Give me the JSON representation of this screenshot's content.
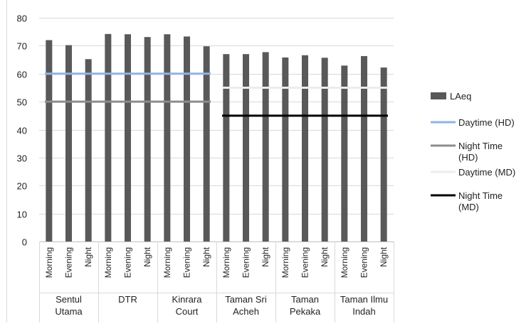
{
  "chart_data": {
    "type": "bar",
    "groups": [
      {
        "label": [
          "Sentul",
          "Utama"
        ],
        "categories": [
          "Morning",
          "Evening",
          "Night"
        ]
      },
      {
        "label": [
          "DTR"
        ],
        "categories": [
          "Morning",
          "Evening",
          "Night"
        ]
      },
      {
        "label": [
          "Kinrara",
          "Court"
        ],
        "categories": [
          "Morning",
          "Evening",
          "Night"
        ]
      },
      {
        "label": [
          "Taman Sri",
          "Acheh"
        ],
        "categories": [
          "Morning",
          "Evening",
          "Night"
        ]
      },
      {
        "label": [
          "Taman",
          "Pekaka"
        ],
        "categories": [
          "Morning",
          "Evening",
          "Night"
        ]
      },
      {
        "label": [
          "Taman Ilmu",
          "Indah"
        ],
        "categories": [
          "Morning",
          "Evening",
          "Night"
        ]
      }
    ],
    "series": [
      {
        "name": "LAeq",
        "kind": "bar",
        "color": "#595959",
        "values": [
          72,
          70.2,
          65.2,
          74.2,
          74.1,
          73.1,
          74.1,
          73.3,
          69.8,
          67,
          67,
          67.7,
          65.8,
          66.6,
          65.7,
          62.9,
          66.3,
          62.2
        ]
      },
      {
        "name": "Daytime (HD)",
        "kind": "line",
        "color": "#8fb4e3",
        "value": 60,
        "from_index": 0,
        "to_index": 8
      },
      {
        "name": "Night Time (HD)",
        "kind": "line",
        "color": "#8c8c8c",
        "value": 50,
        "from_index": 0,
        "to_index": 8
      },
      {
        "name": "Daytime (MD)",
        "kind": "line",
        "color": "#ececec",
        "value": 55,
        "from_index": 9,
        "to_index": 17
      },
      {
        "name": "Night Time (MD)",
        "kind": "line",
        "color": "#000000",
        "value": 45,
        "from_index": 9,
        "to_index": 17
      }
    ],
    "legend_lines": [
      [
        "LAeq"
      ],
      [
        "Daytime (HD)"
      ],
      [
        "Night Time",
        "(HD)"
      ],
      [
        "Daytime (MD)"
      ],
      [
        "Night Time",
        "(MD)"
      ]
    ],
    "ylim": [
      0,
      80
    ],
    "yticks": [
      0,
      10,
      20,
      30,
      40,
      50,
      60,
      70,
      80
    ],
    "grid": true,
    "legend_position": "right"
  }
}
